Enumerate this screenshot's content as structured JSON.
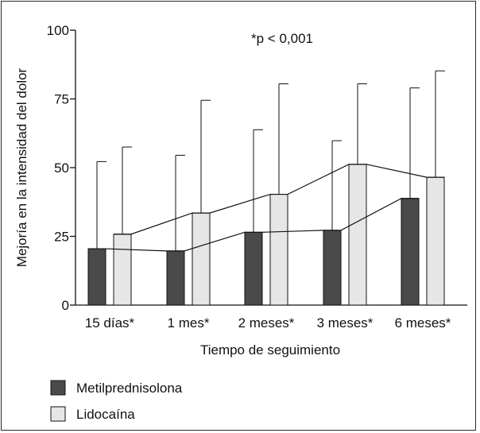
{
  "chart_data": {
    "type": "bar",
    "annotation": "*p < 0,001",
    "xlabel": "Tiempo de seguimiento",
    "ylabel": "Mejoría en la intensidad del dolor",
    "ylim": [
      0,
      100
    ],
    "yticks": [
      "0",
      "25",
      "50",
      "75",
      "100"
    ],
    "categories": [
      "15 días*",
      "1 mes*",
      "2 meses*",
      "3 meses*",
      "6 meses*"
    ],
    "series": [
      {
        "name": "Metilprednisolona",
        "color": "#4a4a4a",
        "values": [
          20.5,
          19.7,
          26.5,
          27.2,
          38.8
        ],
        "error_upper": [
          52.2,
          54.5,
          63.8,
          59.8,
          79.0
        ]
      },
      {
        "name": "Lidocaína",
        "color": "#e6e6e6",
        "values": [
          25.8,
          33.5,
          40.3,
          51.2,
          46.5
        ],
        "error_upper": [
          57.5,
          74.5,
          80.5,
          80.5,
          85.2
        ]
      }
    ],
    "trend_lines": true,
    "legend_position": "bottom-left",
    "grid": false
  }
}
